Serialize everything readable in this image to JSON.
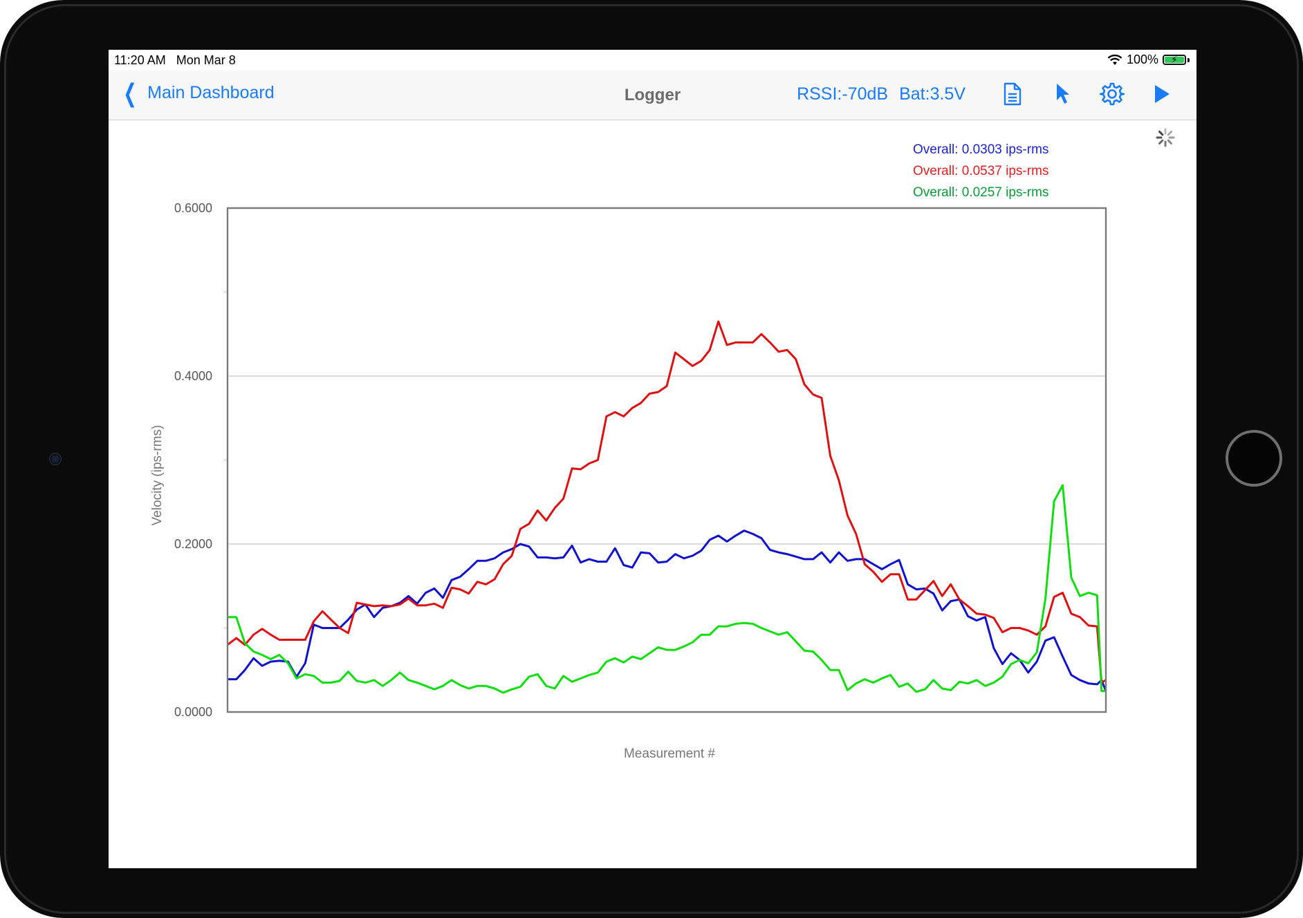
{
  "status_bar": {
    "time": "11:20 AM",
    "date": "Mon Mar 8",
    "battery": "100%",
    "battery_level": 1.0
  },
  "nav": {
    "back_label": "Main Dashboard",
    "title": "Logger",
    "rssi": "RSSI:-70dB",
    "battery_voltage": "Bat:3.5V"
  },
  "icons": {
    "back": "chevron-left-icon",
    "document": "document-icon",
    "pointer": "cursor-arrow-icon",
    "settings": "gear-icon",
    "play": "play-icon",
    "spinner": "activity-spinner-icon"
  },
  "overall": [
    {
      "label": "Overall: 0.0303 ips-rms",
      "color": "#1c24c8"
    },
    {
      "label": "Overall: 0.0537 ips-rms",
      "color": "#e02020"
    },
    {
      "label": "Overall: 0.0257 ips-rms",
      "color": "#0a9a3a"
    }
  ],
  "colors": {
    "accent": "#1a7cf5",
    "blue_series": "#1111cc",
    "red_series": "#dd1111",
    "green_series": "#11dd11"
  },
  "chart_data": {
    "type": "line",
    "title": "",
    "xlabel": "Measurement #",
    "ylabel": "Velocity (ips-rms)",
    "ylim": [
      0,
      0.6
    ],
    "yticks": [
      "0.0000",
      "0.2000",
      "0.4000",
      "0.6000"
    ],
    "grid": true,
    "x": [
      0,
      1,
      2,
      3,
      4,
      5,
      6,
      7,
      8,
      9,
      10,
      11,
      12,
      13,
      14,
      15,
      16,
      17,
      18,
      19,
      20,
      21,
      22,
      23,
      24,
      25,
      26,
      27,
      28,
      29,
      30,
      31,
      32,
      33,
      34,
      35,
      36,
      37,
      38,
      39,
      40,
      41,
      42,
      43,
      44,
      45,
      46,
      47,
      48,
      49,
      50,
      51,
      52,
      53,
      54,
      55,
      56,
      57,
      58,
      59,
      60,
      61,
      62,
      63,
      64,
      65,
      66,
      67,
      67.8,
      69,
      70,
      71,
      72,
      73,
      74,
      75,
      76,
      77,
      78,
      79,
      80,
      81,
      82,
      83,
      84,
      85,
      86,
      87,
      88,
      89,
      90,
      91,
      92,
      93,
      94,
      95,
      96,
      97,
      98,
      99,
      100
    ],
    "series": [
      {
        "color": "#1111cc",
        "values": [
          0.039,
          0.05,
          0.064,
          0.055,
          0.06,
          0.061,
          0.06,
          0.042,
          0.058,
          0.104,
          0.1,
          0.1,
          0.1,
          0.11,
          0.122,
          0.128,
          0.113,
          0.124,
          0.126,
          0.13,
          0.138,
          0.129,
          0.142,
          0.147,
          0.136,
          0.157,
          0.161,
          0.17,
          0.18,
          0.18,
          0.183,
          0.19,
          0.194,
          0.2,
          0.197,
          0.184,
          0.184,
          0.183,
          0.184,
          0.198,
          0.178,
          0.182,
          0.179,
          0.179,
          0.195,
          0.175,
          0.172,
          0.19,
          0.189,
          0.178,
          0.179,
          0.188,
          0.183,
          0.186,
          0.192,
          0.205,
          0.21,
          0.203,
          0.21,
          0.216,
          0.212,
          0.207,
          0.193,
          0.19,
          0.188,
          0.185,
          0.182,
          0.182,
          0.19,
          0.178,
          0.19,
          0.18,
          0.182,
          0.182,
          0.176,
          0.17,
          0.176,
          0.181,
          0.152,
          0.146,
          0.147,
          0.141,
          0.121,
          0.132,
          0.134,
          0.114,
          0.109,
          0.113,
          0.076,
          0.057,
          0.07,
          0.062,
          0.047,
          0.06,
          0.085,
          0.089,
          0.066,
          0.044,
          0.038,
          0.034,
          0.033
        ],
        "tail": [
          0.039,
          0.038,
          0.025
        ]
      },
      {
        "color": "#dd1111",
        "values": [
          0.088,
          0.08,
          0.092,
          0.099,
          0.092,
          0.086,
          0.086,
          0.086,
          0.086,
          0.108,
          0.12,
          0.11,
          0.1,
          0.094,
          0.13,
          0.128,
          0.126,
          0.127,
          0.126,
          0.128,
          0.135,
          0.127,
          0.127,
          0.129,
          0.124,
          0.148,
          0.146,
          0.141,
          0.155,
          0.152,
          0.158,
          0.176,
          0.186,
          0.218,
          0.224,
          0.24,
          0.228,
          0.243,
          0.254,
          0.29,
          0.289,
          0.296,
          0.3,
          0.352,
          0.357,
          0.352,
          0.362,
          0.368,
          0.379,
          0.381,
          0.388,
          0.428,
          0.42,
          0.412,
          0.418,
          0.431,
          0.465,
          0.437,
          0.44,
          0.44,
          0.44,
          0.45,
          0.44,
          0.429,
          0.431,
          0.42,
          0.39,
          0.378,
          0.374,
          0.305,
          0.276,
          0.234,
          0.212,
          0.176,
          0.167,
          0.155,
          0.164,
          0.164,
          0.134,
          0.134,
          0.145,
          0.156,
          0.138,
          0.152,
          0.134,
          0.126,
          0.117,
          0.116,
          0.112,
          0.095,
          0.1,
          0.1,
          0.097,
          0.092,
          0.102,
          0.137,
          0.142,
          0.117,
          0.113,
          0.103,
          0.102
        ],
        "tail": [
          0.08,
          0.035,
          0.038
        ]
      },
      {
        "color": "#11dd11",
        "values": [
          0.113,
          0.082,
          0.072,
          0.068,
          0.063,
          0.068,
          0.058,
          0.04,
          0.045,
          0.043,
          0.035,
          0.035,
          0.037,
          0.048,
          0.037,
          0.035,
          0.038,
          0.031,
          0.038,
          0.047,
          0.038,
          0.035,
          0.031,
          0.027,
          0.031,
          0.038,
          0.032,
          0.028,
          0.031,
          0.031,
          0.028,
          0.023,
          0.027,
          0.03,
          0.042,
          0.045,
          0.031,
          0.028,
          0.043,
          0.036,
          0.04,
          0.044,
          0.047,
          0.06,
          0.064,
          0.059,
          0.066,
          0.063,
          0.07,
          0.077,
          0.074,
          0.074,
          0.078,
          0.083,
          0.092,
          0.092,
          0.102,
          0.102,
          0.105,
          0.106,
          0.105,
          0.1,
          0.096,
          0.092,
          0.095,
          0.084,
          0.073,
          0.072,
          0.062,
          0.05,
          0.05,
          0.026,
          0.034,
          0.039,
          0.035,
          0.04,
          0.044,
          0.03,
          0.034,
          0.024,
          0.027,
          0.038,
          0.028,
          0.026,
          0.036,
          0.034,
          0.038,
          0.031,
          0.035,
          0.042,
          0.057,
          0.062,
          0.058,
          0.071,
          0.135,
          0.251,
          0.27,
          0.16,
          0.138,
          0.142,
          0.139
        ],
        "tail": [
          0.113,
          0.025,
          0.025
        ]
      }
    ]
  }
}
